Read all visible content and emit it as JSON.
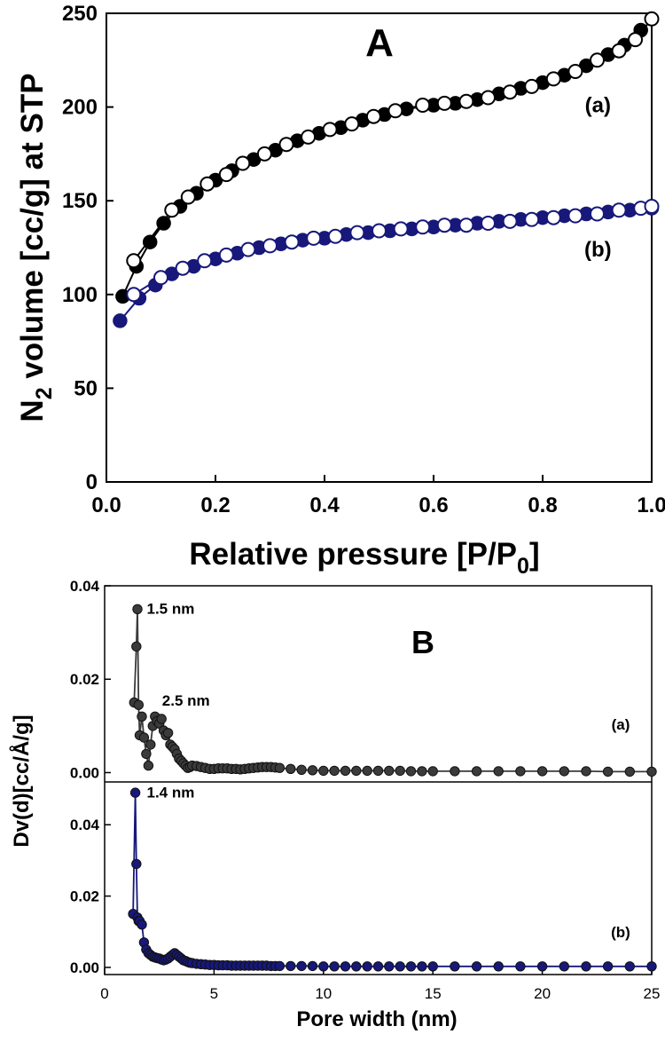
{
  "chart_data": [
    {
      "type": "scatter",
      "panel_label": "A",
      "xlabel_main": "Relative pressure [P/P",
      "xlabel_sub": "0",
      "xlabel_close": "]",
      "ylabel_prefix": "N",
      "ylabel_sub": "2",
      "ylabel_rest": " volume [cc/g] at STP",
      "xlim": [
        0.0,
        1.0
      ],
      "ylim": [
        0,
        250
      ],
      "xticks": [
        "0.0",
        "0.2",
        "0.4",
        "0.6",
        "0.8",
        "1.0"
      ],
      "xtick_values": [
        0.0,
        0.2,
        0.4,
        0.6,
        0.8,
        1.0
      ],
      "yticks": [
        "0",
        "50",
        "100",
        "150",
        "200",
        "250"
      ],
      "ytick_values": [
        0,
        50,
        100,
        150,
        200,
        250
      ],
      "series": [
        {
          "name": "(a)",
          "color": "#000000",
          "label_at": [
            0.95,
            201
          ],
          "adsorption": {
            "x": [
              0.03,
              0.055,
              0.08,
              0.105,
              0.135,
              0.165,
              0.2,
              0.23,
              0.27,
              0.31,
              0.35,
              0.39,
              0.43,
              0.47,
              0.51,
              0.55,
              0.6,
              0.64,
              0.68,
              0.72,
              0.76,
              0.8,
              0.84,
              0.88,
              0.92,
              0.95,
              0.98
            ],
            "y": [
              99,
              115,
              128,
              138,
              147,
              154,
              161,
              166,
              172,
              177,
              182,
              186,
              189,
              193,
              196,
              199,
              201,
              202,
              204,
              207,
              210,
              213,
              217,
              222,
              228,
              233,
              241
            ]
          },
          "desorption": {
            "x": [
              0.05,
              0.12,
              0.15,
              0.185,
              0.22,
              0.25,
              0.29,
              0.33,
              0.37,
              0.41,
              0.45,
              0.49,
              0.53,
              0.58,
              0.62,
              0.66,
              0.7,
              0.74,
              0.78,
              0.82,
              0.86,
              0.9,
              0.94,
              0.97,
              1.0
            ],
            "y": [
              118,
              145,
              152,
              159,
              164,
              170,
              175,
              180,
              184,
              188,
              191,
              195,
              198,
              201,
              202,
              203,
              205,
              208,
              211,
              215,
              219,
              225,
              230,
              236,
              247
            ]
          }
        },
        {
          "name": "(b)",
          "color": "#17187a",
          "label_at": [
            0.95,
            124
          ],
          "adsorption": {
            "x": [
              0.025,
              0.06,
              0.09,
              0.12,
              0.16,
              0.2,
              0.24,
              0.28,
              0.32,
              0.36,
              0.4,
              0.44,
              0.48,
              0.52,
              0.56,
              0.6,
              0.64,
              0.68,
              0.72,
              0.76,
              0.8,
              0.84,
              0.88,
              0.92,
              0.96,
              1.0
            ],
            "y": [
              86,
              98,
              105,
              111,
              115,
              119,
              122,
              125,
              127,
              129,
              130,
              132,
              133,
              134,
              135,
              136,
              137,
              138,
              139,
              140,
              141,
              142,
              143,
              144,
              145,
              146
            ]
          },
          "desorption": {
            "x": [
              0.05,
              0.1,
              0.14,
              0.18,
              0.22,
              0.26,
              0.3,
              0.34,
              0.38,
              0.42,
              0.46,
              0.5,
              0.54,
              0.58,
              0.62,
              0.66,
              0.7,
              0.74,
              0.78,
              0.82,
              0.86,
              0.9,
              0.94,
              0.98,
              1.0
            ],
            "y": [
              100,
              109,
              114,
              118,
              121,
              124,
              126,
              128,
              130,
              131,
              133,
              134,
              135,
              136,
              137,
              137,
              138,
              139,
              140,
              141,
              142,
              143,
              145,
              146,
              147
            ]
          }
        }
      ]
    },
    {
      "type": "line",
      "panel_label": "B",
      "xlabel": "Pore width (nm)",
      "ylabel": "Dv(d)[cc/Å/g]",
      "xlim": [
        0,
        25
      ],
      "xticks": [
        "0",
        "5",
        "10",
        "15",
        "20",
        "25"
      ],
      "xtick_values": [
        0,
        5,
        10,
        15,
        20,
        25
      ],
      "subplots": [
        {
          "name": "(a)",
          "color": "#3b3b3b",
          "ylim": [
            -0.002,
            0.04
          ],
          "yticks": [
            "0.00",
            "0.02",
            "0.04"
          ],
          "ytick_values": [
            0.0,
            0.02,
            0.04
          ],
          "annotations": [
            {
              "text": "1.5 nm",
              "x": 1.6,
              "y": 0.0352
            },
            {
              "text": "2.5 nm",
              "x": 2.3,
              "y": 0.0155
            }
          ],
          "x": [
            1.35,
            1.45,
            1.5,
            1.55,
            1.6,
            1.7,
            1.8,
            1.9,
            2.0,
            2.1,
            2.2,
            2.3,
            2.4,
            2.5,
            2.6,
            2.7,
            2.8,
            2.9,
            3.0,
            3.1,
            3.2,
            3.3,
            3.4,
            3.5,
            3.6,
            3.7,
            3.8,
            3.9,
            4.0,
            4.2,
            4.4,
            4.6,
            4.8,
            5.0,
            5.2,
            5.4,
            5.6,
            5.8,
            6.0,
            6.2,
            6.4,
            6.6,
            6.8,
            7.0,
            7.2,
            7.4,
            7.6,
            7.8,
            8.0,
            8.5,
            9.0,
            9.5,
            10.0,
            10.5,
            11.0,
            11.5,
            12.0,
            12.5,
            13.0,
            13.5,
            14.0,
            14.5,
            15.0,
            16.0,
            17.0,
            18.0,
            19.0,
            20.0,
            21.0,
            22.0,
            23.0,
            24.0,
            25.0
          ],
          "y": [
            0.015,
            0.027,
            0.035,
            0.0145,
            0.008,
            0.012,
            0.0075,
            0.004,
            0.0015,
            0.006,
            0.01,
            0.012,
            0.011,
            0.0105,
            0.0115,
            0.009,
            0.008,
            0.0085,
            0.006,
            0.0055,
            0.005,
            0.004,
            0.003,
            0.0025,
            0.002,
            0.0015,
            0.001,
            0.0012,
            0.0015,
            0.0014,
            0.0012,
            0.001,
            0.0008,
            0.0008,
            0.0009,
            0.0009,
            0.0009,
            0.0008,
            0.0008,
            0.0007,
            0.0008,
            0.0009,
            0.001,
            0.0011,
            0.0012,
            0.0012,
            0.0012,
            0.0011,
            0.001,
            0.0008,
            0.0006,
            0.0005,
            0.0004,
            0.0004,
            0.0004,
            0.0004,
            0.0004,
            0.0004,
            0.0004,
            0.0004,
            0.0003,
            0.0003,
            0.0003,
            0.0003,
            0.0003,
            0.0003,
            0.0003,
            0.0003,
            0.0003,
            0.0003,
            0.0002,
            0.0002,
            0.0002
          ]
        },
        {
          "name": "(b)",
          "color": "#17187a",
          "ylim": [
            -0.002,
            0.052
          ],
          "yticks": [
            "0.00",
            "0.02",
            "0.04"
          ],
          "ytick_values": [
            0.0,
            0.02,
            0.04
          ],
          "annotations": [
            {
              "text": "1.4 nm",
              "x": 1.6,
              "y": 0.0492
            }
          ],
          "x": [
            1.3,
            1.4,
            1.45,
            1.5,
            1.55,
            1.6,
            1.7,
            1.8,
            1.9,
            2.0,
            2.1,
            2.2,
            2.3,
            2.4,
            2.5,
            2.6,
            2.7,
            2.8,
            2.9,
            3.0,
            3.1,
            3.2,
            3.3,
            3.4,
            3.5,
            3.6,
            3.7,
            3.8,
            3.9,
            4.0,
            4.2,
            4.4,
            4.6,
            4.8,
            5.0,
            5.2,
            5.4,
            5.6,
            5.8,
            6.0,
            6.2,
            6.4,
            6.6,
            6.8,
            7.0,
            7.2,
            7.4,
            7.6,
            7.8,
            8.0,
            8.5,
            9.0,
            9.5,
            10.0,
            10.5,
            11.0,
            11.5,
            12.0,
            12.5,
            13.0,
            13.5,
            14.0,
            14.5,
            15.0,
            16.0,
            17.0,
            18.0,
            19.0,
            20.0,
            21.0,
            22.0,
            23.0,
            24.0,
            25.0
          ],
          "y": [
            0.015,
            0.049,
            0.029,
            0.014,
            0.013,
            0.013,
            0.012,
            0.007,
            0.005,
            0.004,
            0.0035,
            0.003,
            0.0028,
            0.0026,
            0.0025,
            0.0022,
            0.002,
            0.0022,
            0.0025,
            0.003,
            0.0035,
            0.004,
            0.0035,
            0.003,
            0.0025,
            0.002,
            0.0018,
            0.0015,
            0.0013,
            0.0012,
            0.001,
            0.0009,
            0.0008,
            0.0007,
            0.0007,
            0.0006,
            0.0006,
            0.0006,
            0.0005,
            0.0005,
            0.0005,
            0.0005,
            0.0005,
            0.0005,
            0.0005,
            0.0005,
            0.0005,
            0.0004,
            0.0004,
            0.0004,
            0.0004,
            0.0004,
            0.0004,
            0.0003,
            0.0003,
            0.0003,
            0.0003,
            0.0003,
            0.0003,
            0.0003,
            0.0003,
            0.0003,
            0.0003,
            0.0003,
            0.0003,
            0.0003,
            0.0003,
            0.0003,
            0.0003,
            0.0003,
            0.0003,
            0.0003,
            0.0003,
            0.0003
          ]
        }
      ]
    }
  ]
}
